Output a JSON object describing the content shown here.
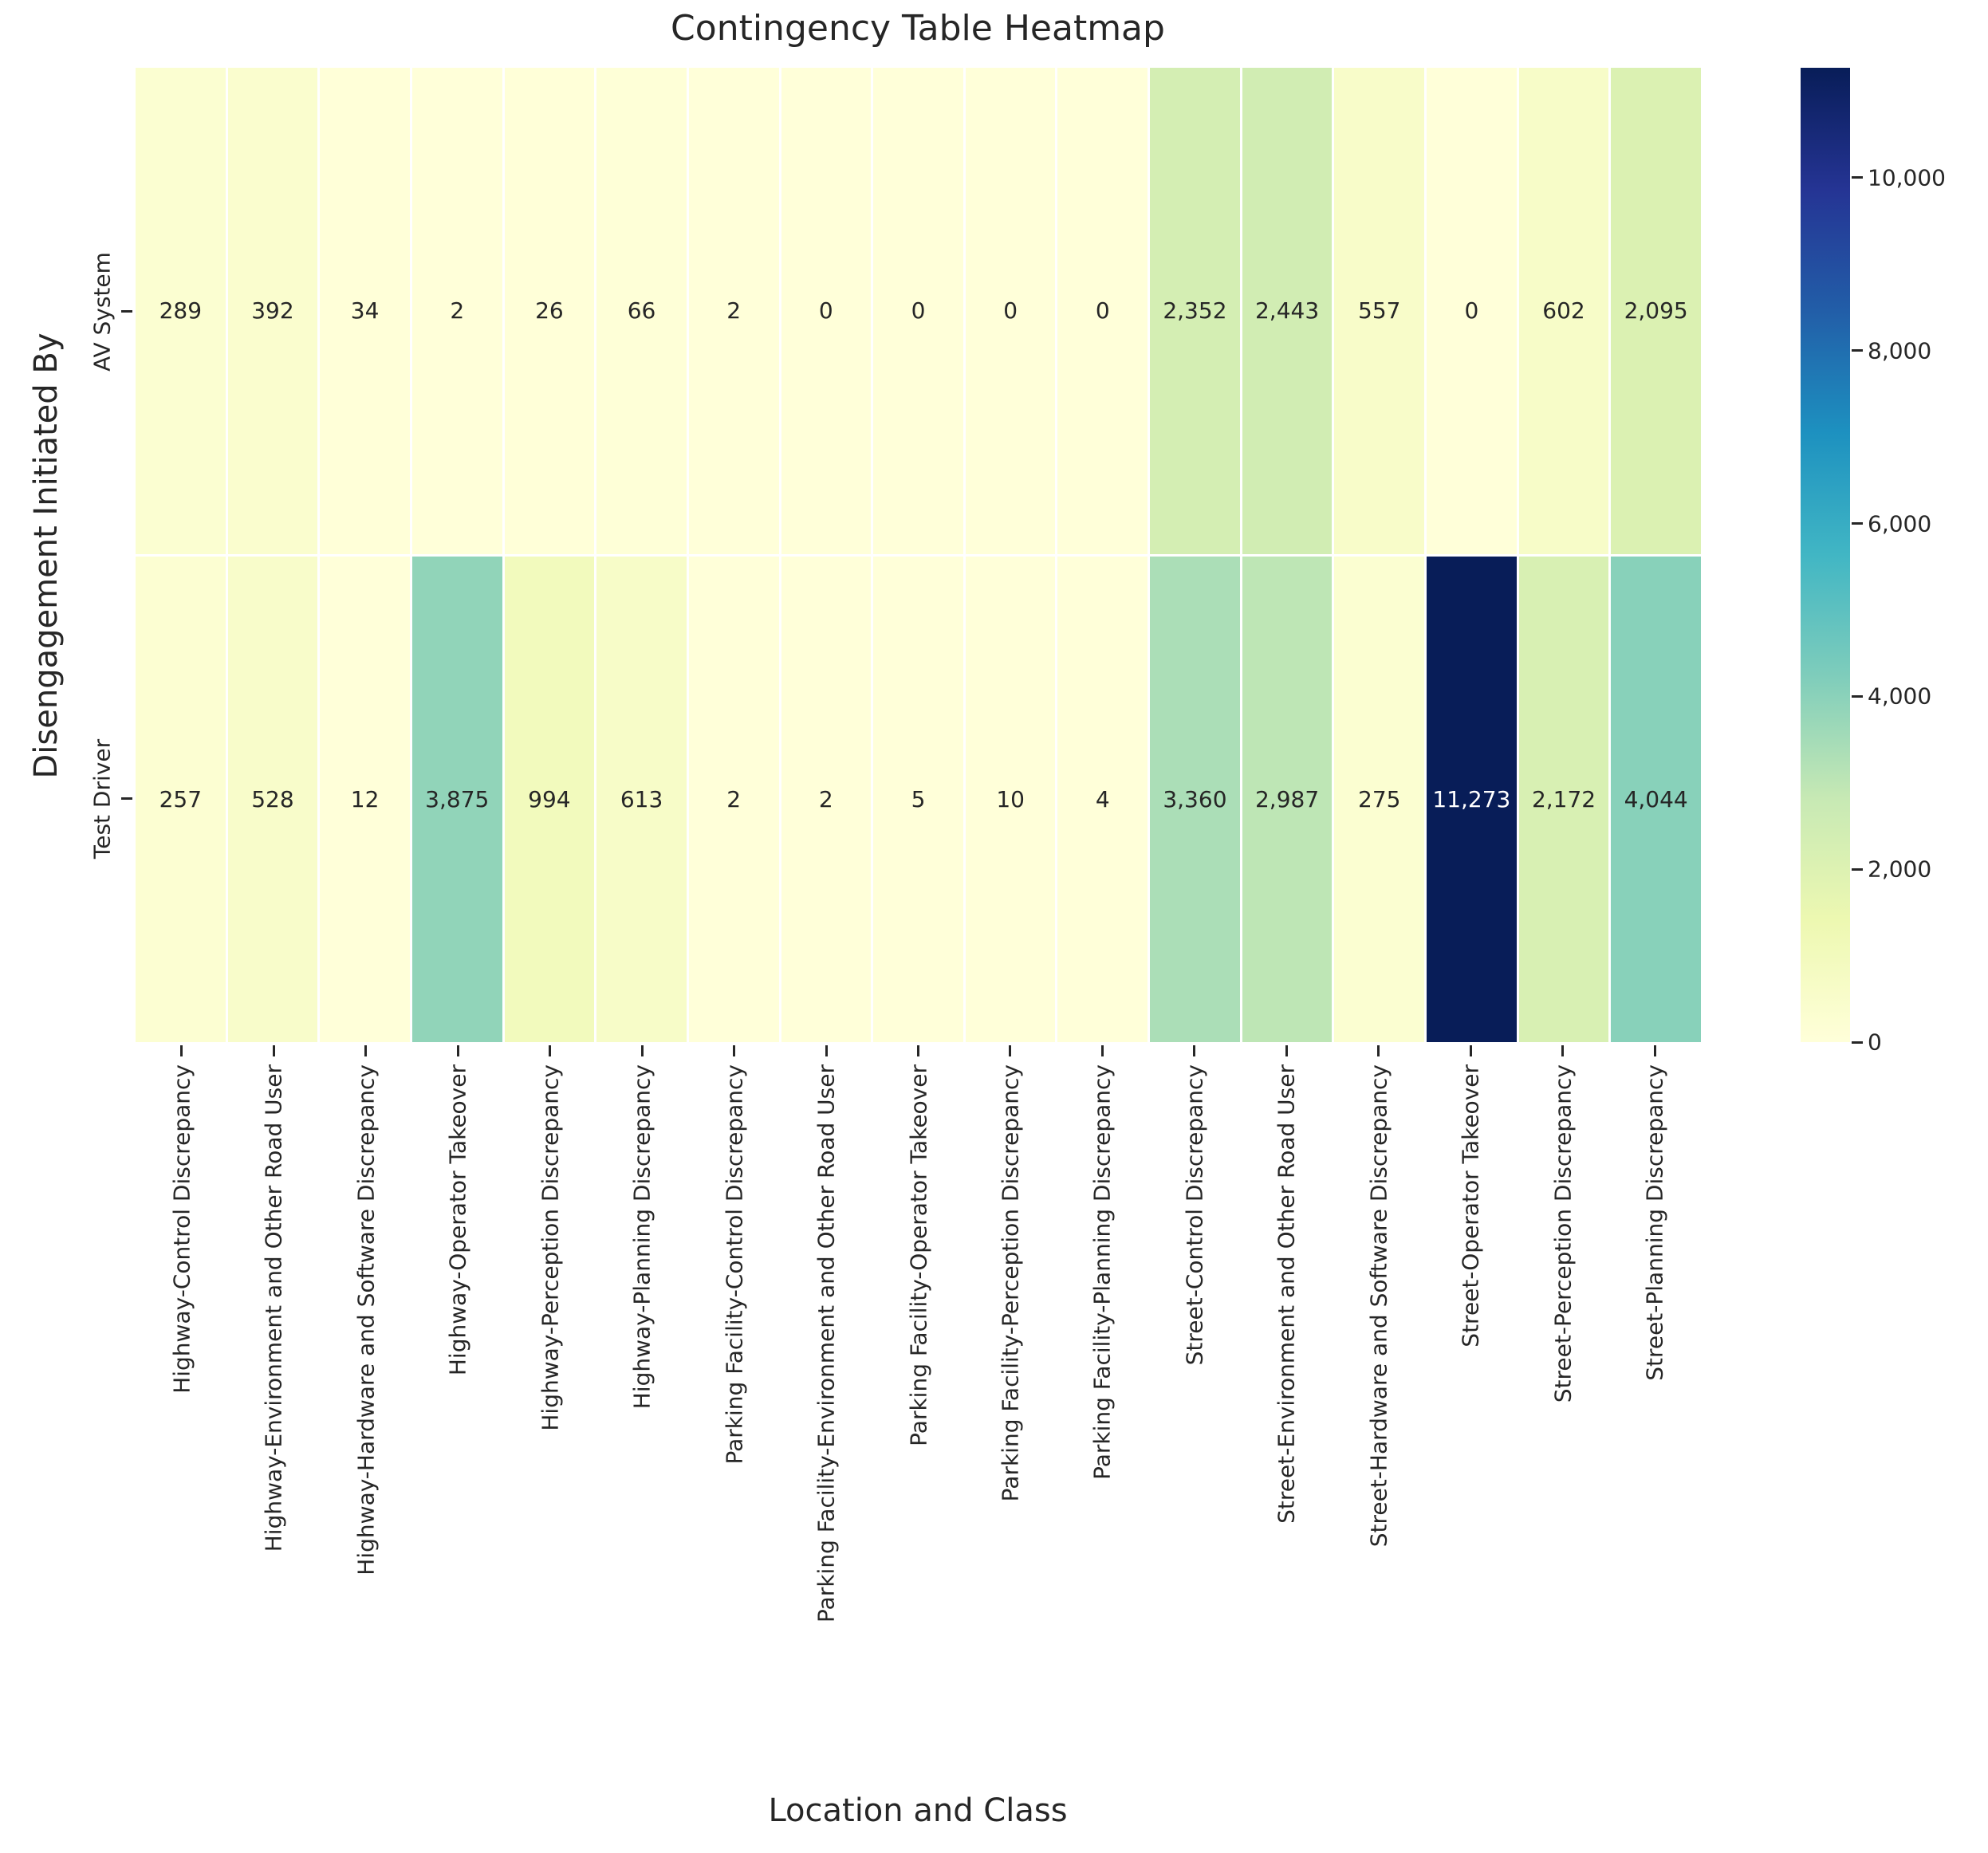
{
  "title": "Contingency Table Heatmap",
  "xlabel": "Location and Class",
  "ylabel": "Disengagement Initiated By",
  "chart_data": {
    "type": "heatmap",
    "colormap": "YlGnBu",
    "vmin": 0,
    "vmax": 11273,
    "rows": [
      "AV System",
      "Test Driver"
    ],
    "columns": [
      "Highway-Control Discrepancy",
      "Highway-Environment and Other Road User",
      "Highway-Hardware and Software Discrepancy",
      "Highway-Operator Takeover",
      "Highway-Perception Discrepancy",
      "Highway-Planning Discrepancy",
      "Parking Facility-Control Discrepancy",
      "Parking Facility-Environment and Other Road User",
      "Parking Facility-Operator Takeover",
      "Parking Facility-Perception Discrepancy",
      "Parking Facility-Planning Discrepancy",
      "Street-Control Discrepancy",
      "Street-Environment and Other Road User",
      "Street-Hardware and Software Discrepancy",
      "Street-Operator Takeover",
      "Street-Perception Discrepancy",
      "Street-Planning Discrepancy"
    ],
    "series": [
      {
        "name": "AV System",
        "values": [
          289,
          392,
          34,
          2,
          26,
          66,
          2,
          0,
          0,
          0,
          0,
          2352,
          2443,
          557,
          0,
          602,
          2095
        ]
      },
      {
        "name": "Test Driver",
        "values": [
          257,
          528,
          12,
          3875,
          994,
          613,
          2,
          2,
          5,
          10,
          4,
          3360,
          2987,
          275,
          11273,
          2172,
          4044
        ]
      }
    ],
    "colorbar_ticks": [
      0,
      2000,
      4000,
      6000,
      8000,
      10000
    ],
    "colorbar_tick_labels": [
      "0",
      "2,000",
      "4,000",
      "6,000",
      "8,000",
      "10,000"
    ],
    "legend_position": "right-colorbar",
    "grid": false
  },
  "colors": {
    "background": "#ffffff",
    "text": "#262626",
    "annotation_dark": "#262626",
    "annotation_light": "#ffffff",
    "colormap_stops": [
      "#ffffd9",
      "#edf8b1",
      "#c7e9b4",
      "#7fcdbb",
      "#41b6c4",
      "#1d91c0",
      "#225ea8",
      "#253494",
      "#081d58"
    ]
  }
}
